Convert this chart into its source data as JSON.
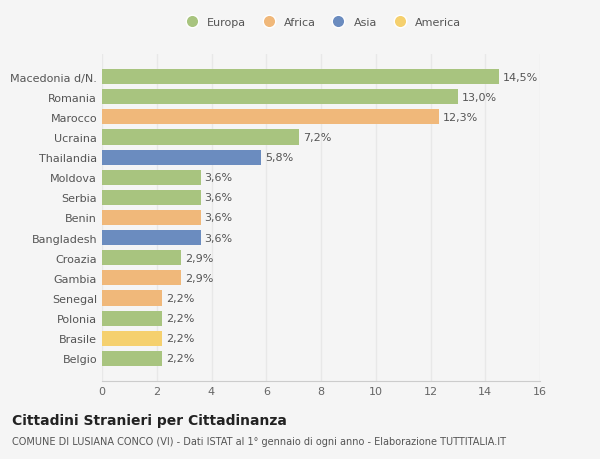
{
  "categories": [
    "Macedonia d/N.",
    "Romania",
    "Marocco",
    "Ucraina",
    "Thailandia",
    "Moldova",
    "Serbia",
    "Benin",
    "Bangladesh",
    "Croazia",
    "Gambia",
    "Senegal",
    "Polonia",
    "Brasile",
    "Belgio"
  ],
  "values": [
    14.5,
    13.0,
    12.3,
    7.2,
    5.8,
    3.6,
    3.6,
    3.6,
    3.6,
    2.9,
    2.9,
    2.2,
    2.2,
    2.2,
    2.2
  ],
  "labels": [
    "14,5%",
    "13,0%",
    "12,3%",
    "7,2%",
    "5,8%",
    "3,6%",
    "3,6%",
    "3,6%",
    "3,6%",
    "2,9%",
    "2,9%",
    "2,2%",
    "2,2%",
    "2,2%",
    "2,2%"
  ],
  "continents": [
    "Europa",
    "Europa",
    "Africa",
    "Europa",
    "Asia",
    "Europa",
    "Europa",
    "Africa",
    "Asia",
    "Europa",
    "Africa",
    "Africa",
    "Europa",
    "America",
    "Europa"
  ],
  "colors": {
    "Europa": "#a8c47f",
    "Africa": "#f0b87a",
    "Asia": "#6b8cbf",
    "America": "#f5d06e"
  },
  "legend_order": [
    "Europa",
    "Africa",
    "Asia",
    "America"
  ],
  "xlim": [
    0,
    16
  ],
  "xticks": [
    0,
    2,
    4,
    6,
    8,
    10,
    12,
    14,
    16
  ],
  "title": "Cittadini Stranieri per Cittadinanza",
  "subtitle": "COMUNE DI LUSIANA CONCO (VI) - Dati ISTAT al 1° gennaio di ogni anno - Elaborazione TUTTITALIA.IT",
  "bg_color": "#f5f5f5",
  "grid_color": "#e8e8e8",
  "bar_height": 0.75,
  "label_fontsize": 8.0,
  "tick_fontsize": 8.0,
  "title_fontsize": 10,
  "subtitle_fontsize": 7.0
}
